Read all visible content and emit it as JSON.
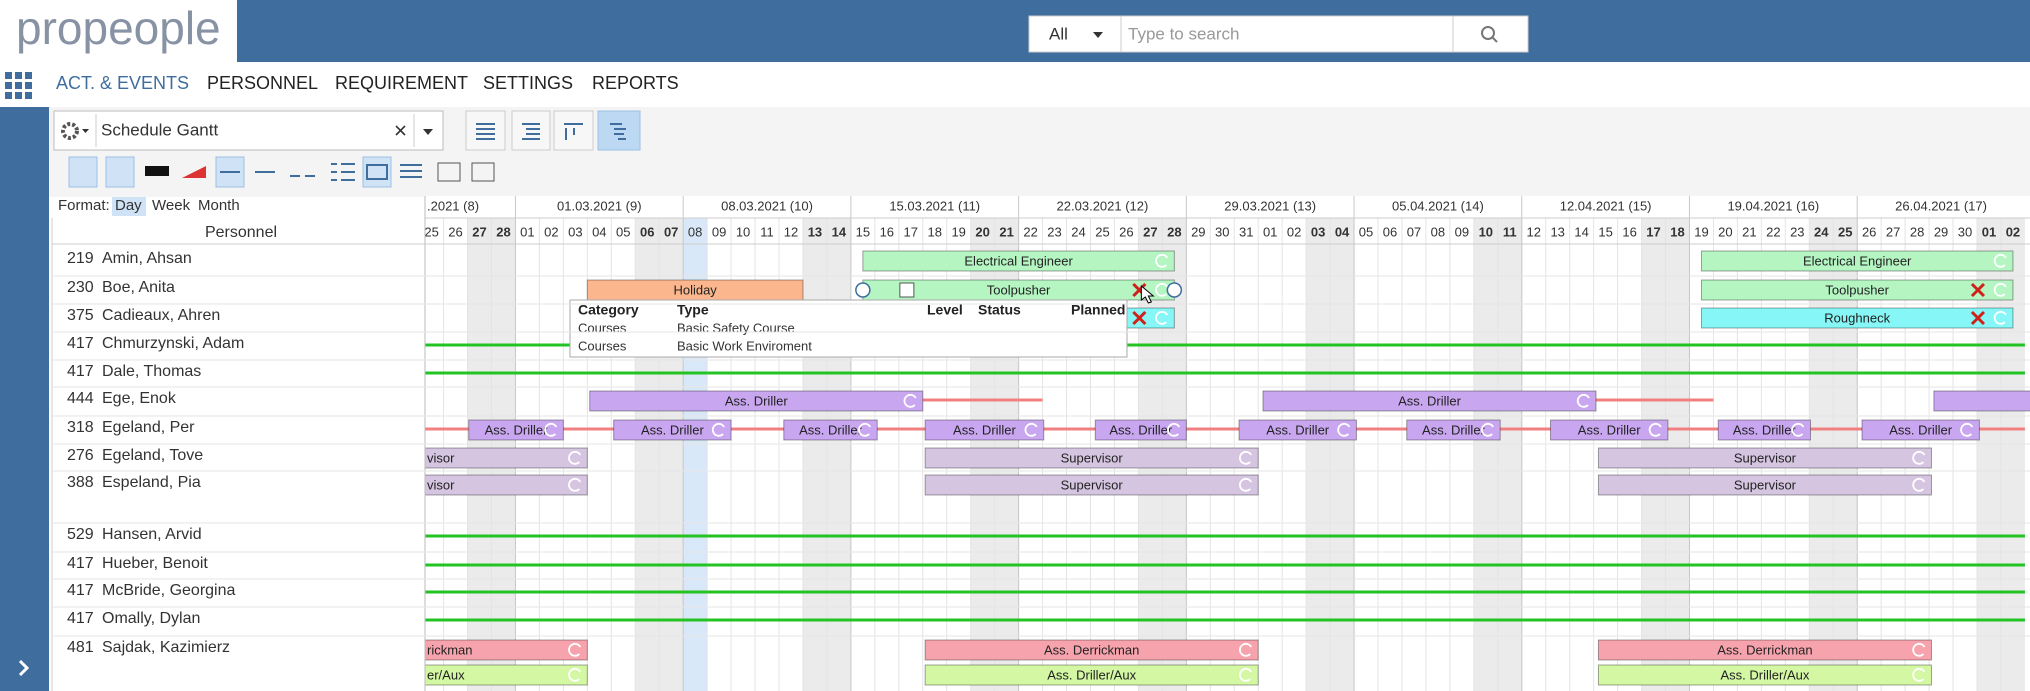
{
  "header": {
    "logo": "propeople",
    "search_scope": "All",
    "search_placeholder": "Type to search"
  },
  "nav": [
    "ACT. & EVENTS",
    "PERSONNEL",
    "REQUIREMENT",
    "SETTINGS",
    "REPORTS"
  ],
  "nav_active": 0,
  "toolbar": {
    "view": "Schedule Gantt",
    "format_label": "Format:",
    "formats": [
      "Day",
      "Week",
      "Month"
    ],
    "format_active": 0
  },
  "chart_data": {
    "type": "gantt",
    "column_header": "Personnel",
    "weeks": [
      ".2021 (8)",
      "01.03.2021 (9)",
      "08.03.2021 (10)",
      "15.03.2021 (11)",
      "22.03.2021 (12)",
      "29.03.2021 (13)",
      "05.04.2021 (14)",
      "12.04.2021 (15)",
      "19.04.2021 (16)",
      "26.04.2021 (17)"
    ],
    "days": [
      "25",
      "26",
      "27",
      "28",
      "01",
      "02",
      "03",
      "04",
      "05",
      "06",
      "07",
      "08",
      "09",
      "10",
      "11",
      "12",
      "13",
      "14",
      "15",
      "16",
      "17",
      "18",
      "19",
      "20",
      "21",
      "22",
      "23",
      "24",
      "25",
      "26",
      "27",
      "28",
      "29",
      "30",
      "31",
      "01",
      "02",
      "03",
      "04",
      "05",
      "06",
      "07",
      "08",
      "09",
      "10",
      "11",
      "12",
      "13",
      "14",
      "15",
      "16",
      "17",
      "18",
      "19",
      "20",
      "21",
      "22",
      "23",
      "24",
      "25",
      "26",
      "27",
      "28",
      "29",
      "30",
      "01",
      "02"
    ],
    "weekend": [
      2,
      3,
      9,
      10,
      16,
      17,
      23,
      24,
      30,
      31,
      37,
      38,
      44,
      45,
      51,
      52,
      58,
      59,
      65,
      66
    ],
    "today": 11,
    "rows": [
      {
        "id": 219,
        "name": "Amin, Ahsan",
        "items": [
          {
            "kind": "bar",
            "label": "Electrical Engineer",
            "start": 18.5,
            "end": 31.5,
            "color": "#b4f5c2",
            "lane": 0,
            "icons": [
              "refresh"
            ]
          },
          {
            "kind": "bar",
            "label": "Electrical Engineer",
            "start": 53.5,
            "end": 66.5,
            "color": "#b4f5c2",
            "lane": 0,
            "icons": [
              "refresh"
            ]
          }
        ]
      },
      {
        "id": 230,
        "name": "Boe, Anita",
        "items": [
          {
            "kind": "bar",
            "label": "Holiday",
            "start": 7,
            "end": 16,
            "color": "#fbb68d",
            "lane": 0,
            "icons": []
          },
          {
            "kind": "bar",
            "label": "Toolpusher",
            "start": 18.5,
            "end": 31.5,
            "color": "#b4f5c2",
            "lane": 0,
            "icons": [
              "x",
              "refresh"
            ],
            "selected": true
          },
          {
            "kind": "bar",
            "label": "Toolpusher",
            "start": 53.5,
            "end": 66.5,
            "color": "#b4f5c2",
            "lane": 0,
            "icons": [
              "x",
              "refresh"
            ]
          }
        ]
      },
      {
        "id": 375,
        "name": "Cadieaux, Ahren",
        "items": [
          {
            "kind": "bar",
            "start": 29.5,
            "end": 31.5,
            "color": "#86f6f6",
            "lane": 0,
            "icons": [
              "x",
              "refresh"
            ]
          },
          {
            "kind": "bar",
            "label": "Roughneck",
            "start": 53.5,
            "end": 66.5,
            "color": "#86f6f6",
            "lane": 0,
            "icons": [
              "x",
              "refresh"
            ]
          }
        ]
      },
      {
        "id": 417,
        "name": "Chmurzynski, Adam",
        "items": [
          {
            "kind": "line",
            "start": 0,
            "end": 67,
            "color": "#22c322"
          }
        ]
      },
      {
        "id": 417,
        "name": "Dale, Thomas",
        "items": [
          {
            "kind": "line",
            "start": 0,
            "end": 67,
            "color": "#22c322"
          }
        ]
      },
      {
        "id": 444,
        "name": "Ege, Enok",
        "items": [
          {
            "kind": "line",
            "start": 21,
            "end": 26,
            "color": "#f08080"
          },
          {
            "kind": "line",
            "start": 49.1,
            "end": 54,
            "color": "#f08080"
          },
          {
            "kind": "bar",
            "label": "Ass. Driller",
            "start": 7.1,
            "end": 21,
            "color": "#c9a7f0",
            "lane": 0,
            "icons": [
              "refresh"
            ]
          },
          {
            "kind": "bar",
            "label": "Ass. Driller",
            "start": 35.2,
            "end": 49.1,
            "color": "#c9a7f0",
            "lane": 0,
            "icons": [
              "refresh"
            ]
          },
          {
            "kind": "bar",
            "start": 63.2,
            "end": 68,
            "color": "#c9a7f0",
            "lane": 0,
            "icons": []
          }
        ]
      },
      {
        "id": 318,
        "name": "Egeland, Per",
        "items": [
          {
            "kind": "line",
            "start": 0,
            "end": 67,
            "color": "#f08080"
          },
          {
            "kind": "bar",
            "label": "Ass. Driller",
            "start": 2.05,
            "end": 6,
            "color": "#c9a7f0",
            "lane": 0,
            "icons": [
              "refresh"
            ]
          },
          {
            "kind": "bar",
            "label": "Ass. Driller",
            "start": 8.1,
            "end": 13,
            "color": "#c9a7f0",
            "lane": 0,
            "icons": [
              "refresh"
            ]
          },
          {
            "kind": "bar",
            "label": "Ass. Driller",
            "start": 15.2,
            "end": 19.1,
            "color": "#c9a7f0",
            "lane": 0,
            "icons": [
              "refresh"
            ]
          },
          {
            "kind": "bar",
            "label": "Ass. Driller",
            "start": 21.1,
            "end": 26.05,
            "color": "#c9a7f0",
            "lane": 0,
            "icons": [
              "refresh"
            ]
          },
          {
            "kind": "bar",
            "label": "Ass. Driller",
            "start": 28.2,
            "end": 32,
            "color": "#c9a7f0",
            "lane": 0,
            "icons": [
              "refresh"
            ]
          },
          {
            "kind": "bar",
            "label": "Ass. Driller",
            "start": 34.2,
            "end": 39.1,
            "color": "#c9a7f0",
            "lane": 0,
            "icons": [
              "refresh"
            ]
          },
          {
            "kind": "bar",
            "label": "Ass. Driller",
            "start": 41.2,
            "end": 45.1,
            "color": "#c9a7f0",
            "lane": 0,
            "icons": [
              "refresh"
            ]
          },
          {
            "kind": "bar",
            "label": "Ass. Driller",
            "start": 47.2,
            "end": 52.1,
            "color": "#c9a7f0",
            "lane": 0,
            "icons": [
              "refresh"
            ]
          },
          {
            "kind": "bar",
            "label": "Ass. Driller",
            "start": 54.2,
            "end": 58.05,
            "color": "#c9a7f0",
            "lane": 0,
            "icons": [
              "refresh"
            ]
          },
          {
            "kind": "bar",
            "label": "Ass. Driller",
            "start": 60.2,
            "end": 65.1,
            "color": "#c9a7f0",
            "lane": 0,
            "icons": [
              "refresh"
            ]
          }
        ]
      },
      {
        "id": 276,
        "name": "Egeland, Tove",
        "items": [
          {
            "kind": "bar",
            "label": "visor",
            "start": -4,
            "end": 7,
            "color": "#d5c5e1",
            "lane": 0,
            "icons": [
              "refresh"
            ]
          },
          {
            "kind": "bar",
            "label": "Supervisor",
            "start": 21.1,
            "end": 35,
            "color": "#d5c5e1",
            "lane": 0,
            "icons": [
              "refresh"
            ]
          },
          {
            "kind": "bar",
            "label": "Supervisor",
            "start": 49.2,
            "end": 63.1,
            "color": "#d5c5e1",
            "lane": 0,
            "icons": [
              "refresh"
            ]
          }
        ]
      },
      {
        "id": 388,
        "name": "Espeland, Pia",
        "items": [
          {
            "kind": "bar",
            "label": "visor",
            "start": -4,
            "end": 7,
            "color": "#d5c5e1",
            "lane": 0,
            "icons": [
              "refresh"
            ]
          },
          {
            "kind": "bar",
            "label": "Supervisor",
            "start": 21.1,
            "end": 35,
            "color": "#d5c5e1",
            "lane": 0,
            "icons": [
              "refresh"
            ]
          },
          {
            "kind": "bar",
            "label": "Supervisor",
            "start": 49.2,
            "end": 63.1,
            "color": "#d5c5e1",
            "lane": 0,
            "icons": [
              "refresh"
            ]
          }
        ]
      },
      {
        "id": 529,
        "name": "Hansen, Arvid",
        "items": [
          {
            "kind": "line",
            "start": 0,
            "end": 67,
            "color": "#22c322"
          }
        ]
      },
      {
        "id": 417,
        "name": "Hueber, Benoit",
        "items": [
          {
            "kind": "line",
            "start": 0,
            "end": 67,
            "color": "#22c322"
          }
        ]
      },
      {
        "id": 417,
        "name": "McBride, Georgina",
        "items": [
          {
            "kind": "line",
            "start": 0,
            "end": 67,
            "color": "#22c322"
          }
        ]
      },
      {
        "id": 417,
        "name": "Omally, Dylan",
        "items": [
          {
            "kind": "line",
            "start": 0,
            "end": 67,
            "color": "#22c322"
          }
        ]
      },
      {
        "id": 481,
        "name": "Sajdak, Kazimierz",
        "items": [
          {
            "kind": "bar",
            "label": "rickman",
            "start": -4,
            "end": 7,
            "color": "#f7a3ad",
            "lane": 0,
            "icons": [
              "refresh"
            ]
          },
          {
            "kind": "bar",
            "label": "Ass. Derrickman",
            "start": 21.1,
            "end": 35,
            "color": "#f7a3ad",
            "lane": 0,
            "icons": [
              "refresh"
            ]
          },
          {
            "kind": "bar",
            "label": "Ass. Derrickman",
            "start": 49.2,
            "end": 63.1,
            "color": "#f7a3ad",
            "lane": 0,
            "icons": [
              "refresh"
            ]
          },
          {
            "kind": "bar",
            "label": "er/Aux",
            "start": -4,
            "end": 7,
            "color": "#d3f7a3",
            "lane": 1,
            "icons": [
              "refresh"
            ]
          },
          {
            "kind": "bar",
            "label": "Ass. Driller/Aux",
            "start": 21.1,
            "end": 35,
            "color": "#d3f7a3",
            "lane": 1,
            "icons": [
              "refresh"
            ]
          },
          {
            "kind": "bar",
            "label": "Ass. Driller/Aux",
            "start": 49.2,
            "end": 63.1,
            "color": "#d3f7a3",
            "lane": 1,
            "icons": [
              "refresh"
            ]
          }
        ]
      }
    ],
    "tooltip": {
      "columns": [
        "Category",
        "Type",
        "Level",
        "Status",
        "Planned"
      ],
      "rows": [
        [
          "Courses",
          "Basic Safety Course"
        ],
        [
          "Courses",
          "Basic Work Enviroment"
        ]
      ]
    }
  }
}
